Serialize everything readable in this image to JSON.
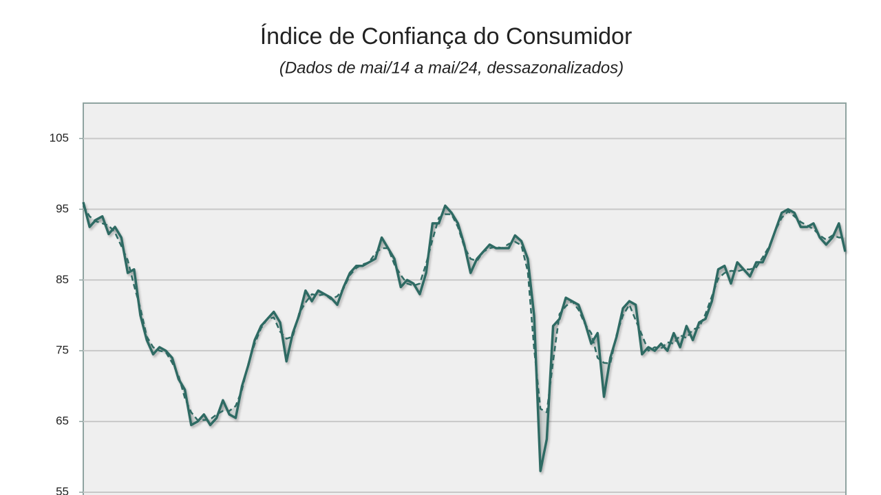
{
  "chart_data": {
    "type": "line",
    "title": "Índice de Confiança do Consumidor",
    "subtitle": "(Dados de mai/14 a mai/24, dessazonalizados)",
    "categories": [
      null,
      null,
      null,
      null,
      null,
      null,
      null,
      null,
      null,
      null,
      null,
      null,
      null,
      null,
      null,
      null,
      null,
      null,
      null,
      null,
      null,
      null,
      null,
      null,
      null,
      null,
      null,
      null,
      null,
      null,
      null,
      null,
      null,
      null,
      null,
      null,
      null,
      null,
      null,
      null,
      null,
      null,
      null,
      null,
      null,
      null,
      null,
      null,
      null,
      null,
      null,
      null,
      null,
      null,
      null,
      null,
      null,
      null,
      null,
      null,
      null,
      null,
      null,
      null,
      null,
      null,
      null,
      null,
      null,
      null,
      null,
      null,
      null,
      null,
      null,
      null,
      null,
      null,
      null,
      null,
      null,
      null,
      null,
      null,
      null,
      null,
      null,
      null,
      null,
      null,
      null,
      null,
      null,
      null,
      null,
      null,
      null,
      null,
      null,
      null,
      null,
      null,
      null,
      null,
      null,
      null,
      null,
      null,
      null,
      null,
      null,
      null,
      null,
      null,
      null,
      null,
      null,
      null,
      null,
      null,
      null
    ],
    "series": [
      {
        "color": "#2f6b64",
        "style": "solid",
        "values": [
          96,
          92.5,
          93.5,
          94,
          91.5,
          92.5,
          91,
          86,
          86.5,
          80,
          76.5,
          74.5,
          75.5,
          75,
          74,
          71,
          69.5,
          64.5,
          65,
          66,
          64.5,
          65.5,
          68,
          66,
          65.5,
          70,
          73,
          76.5,
          78.5,
          79.5,
          80.5,
          79,
          73.5,
          77.5,
          80,
          83.5,
          82,
          83.5,
          83,
          82.5,
          81.5,
          84,
          86,
          87,
          87,
          87.5,
          88,
          91,
          89.5,
          88,
          84,
          85,
          84.5,
          83,
          86,
          93,
          93,
          95.5,
          94.5,
          93,
          90,
          86,
          88,
          89,
          90,
          89.5,
          89.5,
          89.5,
          91.3,
          90.5,
          88,
          80,
          58,
          62.5,
          78.5,
          79.5,
          82.5,
          82,
          81.5,
          79,
          76,
          77.5,
          68.5,
          74,
          77,
          81,
          82,
          81.5,
          74.5,
          75.5,
          75,
          76,
          75,
          77.5,
          75.5,
          78.5,
          76.5,
          79,
          79.5,
          82,
          86.5,
          87,
          84.5,
          87.5,
          86.5,
          85.5,
          87.5,
          87.5,
          89.5,
          92,
          94.5,
          95,
          94.5,
          92.5,
          92.5,
          93,
          91,
          90,
          91,
          93,
          89
        ]
      },
      {
        "color": "#2f6b64",
        "style": "dashed",
        "values": [
          95.5,
          94,
          93.3,
          93,
          92.7,
          91.7,
          89.8,
          87.8,
          84.2,
          81,
          77,
          75.5,
          75,
          74.8,
          73.3,
          71.5,
          68.3,
          66.3,
          65.2,
          65.2,
          65.3,
          66,
          66.5,
          66.5,
          67.2,
          69.5,
          73.2,
          76,
          78.2,
          79.5,
          79.7,
          77.7,
          76.7,
          77,
          80.3,
          81.8,
          83,
          82.8,
          83,
          82.3,
          82.7,
          83.8,
          85.7,
          86.7,
          87.2,
          87.5,
          88.8,
          89.5,
          89.5,
          87.2,
          85.7,
          84.5,
          84.2,
          84.5,
          87.3,
          90.7,
          93.8,
          94.3,
          94.3,
          92.5,
          89.7,
          88,
          87.7,
          89,
          89.5,
          89.7,
          89.5,
          90.1,
          90.4,
          89.9,
          86.2,
          75.3,
          66.8,
          66.3,
          73.5,
          80.2,
          81.3,
          82,
          80.8,
          78.8,
          77.5,
          74,
          73.3,
          73.2,
          77.3,
          80,
          81.5,
          79.3,
          77.2,
          75,
          75.5,
          75.3,
          76.2,
          76,
          77.2,
          76.8,
          78,
          78.3,
          80.2,
          82.7,
          85.2,
          86,
          86.3,
          86.2,
          86.5,
          86.5,
          86.8,
          88.2,
          89.7,
          92,
          93.8,
          94.7,
          94,
          93.2,
          92.7,
          92.2,
          91.3,
          90.7,
          91.3,
          91,
          91
        ]
      }
    ],
    "ylim": [
      55,
      110
    ],
    "yticks": [
      55,
      65,
      75,
      85,
      95,
      105
    ],
    "grid": true
  }
}
